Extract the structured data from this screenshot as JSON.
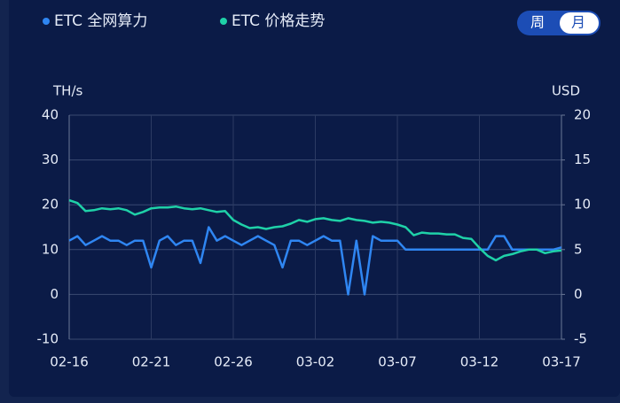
{
  "controls": {
    "options": [
      "周",
      "月"
    ],
    "selected": 1
  },
  "chart_data": {
    "type": "line",
    "ylabel": "TH/s",
    "y2label": "USD",
    "categories": [
      "02-16",
      null,
      null,
      null,
      null,
      null,
      null,
      null,
      null,
      null,
      "02-21",
      null,
      null,
      null,
      null,
      null,
      null,
      null,
      null,
      null,
      "02-26",
      null,
      null,
      null,
      null,
      null,
      null,
      null,
      null,
      null,
      "03-02",
      null,
      null,
      null,
      null,
      null,
      null,
      null,
      null,
      null,
      "03-07",
      null,
      null,
      null,
      null,
      null,
      null,
      null,
      null,
      null,
      "03-12",
      null,
      null,
      null,
      null,
      null,
      null,
      null,
      null,
      null,
      "03-17"
    ],
    "ylim": [
      -10,
      40
    ],
    "yticks": [
      -10,
      0,
      10,
      20,
      30,
      40
    ],
    "y2lim": [
      -5,
      20
    ],
    "y2ticks": [
      -5,
      0,
      5,
      10,
      15,
      20
    ],
    "grid": true,
    "series": [
      {
        "name": "ETC 全网算力",
        "color": "#2f86f2",
        "axis": "y",
        "values": [
          12,
          13,
          11,
          12,
          13,
          12,
          12,
          11,
          12,
          12,
          6,
          12,
          13,
          11,
          12,
          12,
          7,
          15,
          12,
          13,
          12,
          11,
          12,
          13,
          12,
          11,
          6,
          12,
          12,
          11,
          12,
          13,
          12,
          12,
          0,
          12,
          0,
          13,
          12,
          12,
          12,
          10,
          10,
          10,
          10,
          10,
          10,
          10,
          10,
          10,
          10,
          10,
          13,
          13,
          10,
          10,
          10,
          10,
          10,
          10,
          10.5
        ]
      },
      {
        "name": "ETC 价格走势",
        "color": "#1fd1a8",
        "axis": "y2",
        "values": [
          10.5,
          10.2,
          9.3,
          9.4,
          9.6,
          9.5,
          9.6,
          9.4,
          8.9,
          9.2,
          9.6,
          9.7,
          9.7,
          9.8,
          9.6,
          9.5,
          9.6,
          9.4,
          9.2,
          9.3,
          8.3,
          7.8,
          7.4,
          7.5,
          7.3,
          7.5,
          7.6,
          7.9,
          8.3,
          8.1,
          8.4,
          8.5,
          8.3,
          8.2,
          8.5,
          8.3,
          8.2,
          8.0,
          8.1,
          8.0,
          7.8,
          7.5,
          6.6,
          6.9,
          6.8,
          6.8,
          6.7,
          6.7,
          6.3,
          6.2,
          5.2,
          4.3,
          3.8,
          4.3,
          4.5,
          4.8,
          5.0,
          5.0,
          4.6,
          4.8,
          4.9
        ]
      }
    ]
  }
}
